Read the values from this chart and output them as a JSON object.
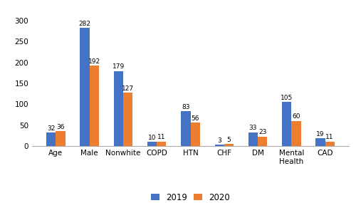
{
  "categories": [
    "Age",
    "Male",
    "Nonwhite",
    "COPD",
    "HTN",
    "CHF",
    "DM",
    "Mental\nHealth",
    "CAD"
  ],
  "values_2019": [
    32,
    282,
    179,
    10,
    83,
    3,
    33,
    105,
    19
  ],
  "values_2020": [
    36,
    192,
    127,
    11,
    56,
    5,
    23,
    60,
    11
  ],
  "color_2019": "#4472C4",
  "color_2020": "#ED7D31",
  "legend_2019": "2019",
  "legend_2020": "2020",
  "ylim": [
    0,
    310
  ],
  "yticks": [
    0,
    50,
    100,
    150,
    200,
    250,
    300
  ],
  "bar_width": 0.28,
  "tick_fontsize": 7.5,
  "legend_fontsize": 8.5,
  "value_fontsize": 6.5
}
